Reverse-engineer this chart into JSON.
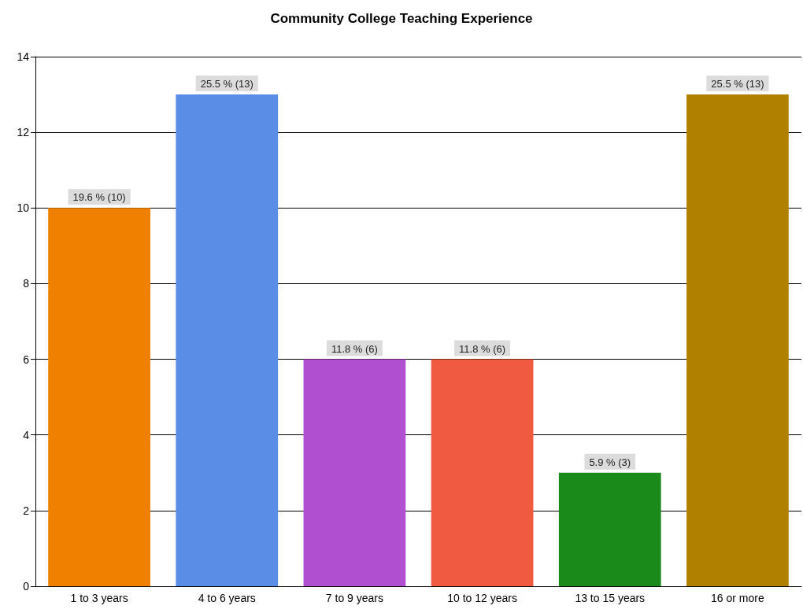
{
  "chart_data": {
    "type": "bar",
    "title": "Community College Teaching Experience",
    "categories": [
      "1 to 3 years",
      "4 to 6 years",
      "7 to 9 years",
      "10 to 12 years",
      "13 to 15 years",
      "16 or more"
    ],
    "values": [
      10,
      13,
      6,
      6,
      3,
      13
    ],
    "colors": [
      "#f08000",
      "#5a8ee6",
      "#b050d0",
      "#f05a40",
      "#1a8a1a",
      "#b08000"
    ],
    "value_labels": [
      "19.6 % (10)",
      "25.5 % (13)",
      "11.8 % (6)",
      "11.8 % (6)",
      "5.9 % (3)",
      "25.5 % (13)"
    ],
    "ylim": [
      0,
      14
    ],
    "yticks": [
      0,
      2,
      4,
      6,
      8,
      10,
      12,
      14
    ],
    "grid": "y"
  }
}
